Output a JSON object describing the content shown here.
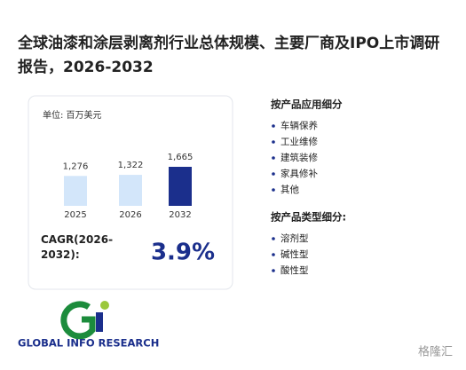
{
  "header": {
    "title": "全球油漆和涂层剥离剂行业总体规模、主要厂商及IPO上市调研报告，2026-2032"
  },
  "chart": {
    "unit": "单位: 百万美元",
    "categories": [
      "2025",
      "2026",
      "2032"
    ],
    "values": [
      1276,
      1322,
      1665
    ],
    "value_labels": [
      "1,276",
      "1,322",
      "1,665"
    ],
    "colors": [
      "#d3e6fa",
      "#d3e6fa",
      "#1b2f8c"
    ]
  },
  "cagr": {
    "label": "CAGR(2026-2032):",
    "value": "3.9%"
  },
  "segments": [
    {
      "heading": "按产品应用细分",
      "items": [
        "车辆保养",
        "工业维修",
        "建筑装修",
        "家具修补",
        "其他"
      ]
    },
    {
      "heading": "按产品类型细分:",
      "items": [
        "溶剂型",
        "碱性型",
        "酸性型"
      ]
    }
  ],
  "logo": {
    "text": "GLOBAL INFO RESEARCH"
  },
  "watermark": "格隆汇"
}
